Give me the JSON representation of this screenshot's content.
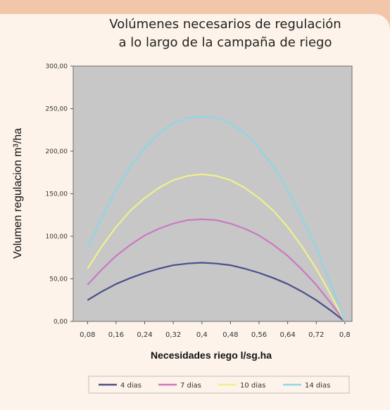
{
  "chart_data": {
    "type": "line",
    "title_line1": "Volúmenes necesarios de regulación",
    "title_line2": "a lo largo de la campaña de riego",
    "xlabel": "Necesidades riego l/sg.ha",
    "ylabel": "Volumen regulacion m³/ha",
    "categories": [
      "0,08",
      "0,16",
      "0,24",
      "0,32",
      "0,4",
      "0,48",
      "0,56",
      "0,64",
      "0,72",
      "0,8"
    ],
    "x": [
      0.08,
      0.16,
      0.24,
      0.32,
      0.4,
      0.48,
      0.56,
      0.64,
      0.72,
      0.8
    ],
    "y_ticks": [
      "0,00",
      "50,00",
      "100,00",
      "150,00",
      "200,00",
      "250,00",
      "300,00"
    ],
    "ylim": [
      0,
      300
    ],
    "grid": false,
    "legend_position": "bottom",
    "series": [
      {
        "name": "4 dias",
        "color": "#4b4f8a",
        "x": [
          0.08,
          0.12,
          0.16,
          0.2,
          0.24,
          0.28,
          0.32,
          0.36,
          0.4,
          0.44,
          0.48,
          0.52,
          0.56,
          0.6,
          0.64,
          0.68,
          0.72,
          0.76,
          0.8
        ],
        "values": [
          25,
          35,
          44,
          51,
          57,
          62,
          66,
          68,
          69,
          68,
          66,
          62,
          57,
          51,
          44,
          35,
          25,
          13,
          0
        ]
      },
      {
        "name": "7 dias",
        "color": "#cc77c2",
        "x": [
          0.08,
          0.12,
          0.16,
          0.2,
          0.24,
          0.28,
          0.32,
          0.36,
          0.4,
          0.44,
          0.48,
          0.52,
          0.56,
          0.6,
          0.64,
          0.68,
          0.72,
          0.76,
          0.8
        ],
        "values": [
          43,
          61,
          77,
          90,
          101,
          109,
          115,
          119,
          120,
          119,
          115,
          109,
          101,
          90,
          77,
          61,
          43,
          22,
          0
        ]
      },
      {
        "name": "10 dias",
        "color": "#f0f08c",
        "x": [
          0.08,
          0.12,
          0.16,
          0.2,
          0.24,
          0.28,
          0.32,
          0.36,
          0.4,
          0.44,
          0.48,
          0.52,
          0.56,
          0.6,
          0.64,
          0.68,
          0.72,
          0.76,
          0.8
        ],
        "values": [
          62,
          88,
          111,
          130,
          145,
          157,
          166,
          171,
          173,
          171,
          166,
          157,
          145,
          130,
          111,
          88,
          62,
          32,
          0
        ]
      },
      {
        "name": "14 dias",
        "color": "#8ed6e6",
        "x": [
          0.08,
          0.12,
          0.16,
          0.2,
          0.24,
          0.28,
          0.32,
          0.36,
          0.4,
          0.44,
          0.48,
          0.52,
          0.56,
          0.6,
          0.64,
          0.68,
          0.72,
          0.76,
          0.8
        ],
        "values": [
          87,
          122,
          155,
          182,
          204,
          221,
          233,
          239,
          241,
          239,
          233,
          221,
          204,
          182,
          155,
          122,
          87,
          45,
          0
        ]
      }
    ]
  }
}
